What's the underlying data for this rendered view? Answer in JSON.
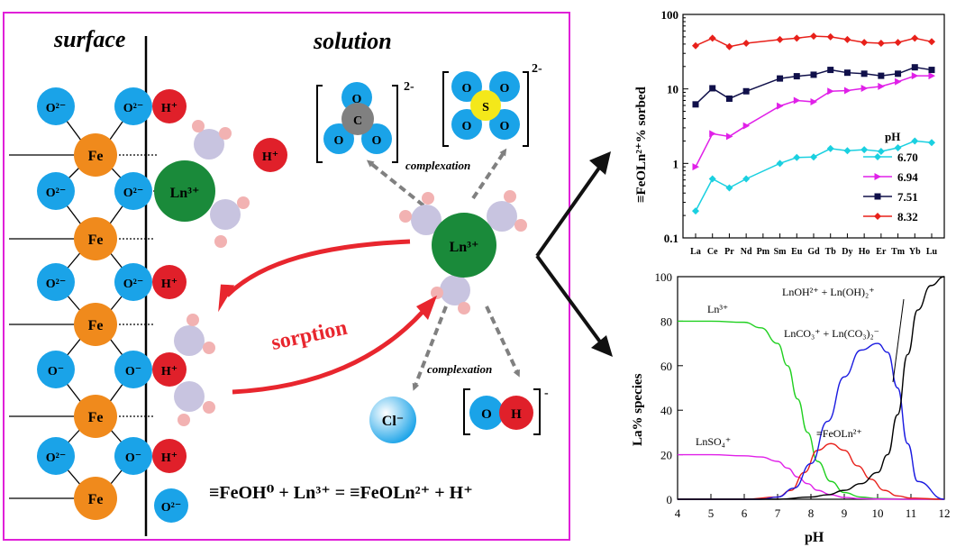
{
  "left_panel": {
    "surface_label": "surface",
    "solution_label": "solution",
    "sorption_label": "sorption",
    "complexation_label_top": "complexation",
    "complexation_label_bottom": "complexation",
    "equation": "≡FeOH⁰ + Ln³⁺ = ≡FeOLn²⁺ + H⁺",
    "atoms": {
      "oxygen_sup": "O²⁻",
      "oxygen_sup_alt": "O⁻",
      "fe": "Fe",
      "hydrogen_sup": "H⁺",
      "ln": "Ln³⁺",
      "o": "O",
      "c": "C",
      "s": "S",
      "cl": "Cl⁻",
      "h": "H",
      "charge_2minus": "2-",
      "charge_minus": "-"
    },
    "colors": {
      "frame": "#e020d8",
      "oxygen": "#1aa3e8",
      "iron": "#f08a1c",
      "hydrogen_ion": "#e0202a",
      "lanthanide": "#1a8a3a",
      "water_o": "#c8c4e0",
      "water_h": "#f2b2b2",
      "carbon": "#808080",
      "sulfur": "#f4e81a",
      "arrow_red": "#e8262e",
      "arrow_gray": "#808080"
    }
  },
  "chart_top": {
    "type": "line",
    "ylabel": "≡FeOLn²⁺% sorbed",
    "y_scale": "log",
    "ylim": [
      0.1,
      100
    ],
    "y_ticks": [
      "0.1",
      "1",
      "10",
      "100"
    ],
    "categories": [
      "La",
      "Ce",
      "Pr",
      "Nd",
      "Pm",
      "Sm",
      "Eu",
      "Gd",
      "Tb",
      "Dy",
      "Ho",
      "Er",
      "Tm",
      "Yb",
      "Lu"
    ],
    "legend_title": "pH",
    "legend_position": "lower-right",
    "series": [
      {
        "name": "6.70",
        "color": "#1ad0e0",
        "marker": "diamond",
        "values": [
          0.23,
          0.62,
          0.47,
          0.62,
          null,
          1.0,
          1.2,
          1.22,
          1.58,
          1.48,
          1.53,
          1.45,
          1.62,
          2.0,
          1.9
        ]
      },
      {
        "name": "6.94",
        "color": "#e020e8",
        "marker": "triangle-right",
        "values": [
          0.9,
          2.5,
          2.3,
          3.2,
          null,
          5.9,
          7.0,
          6.7,
          9.3,
          9.5,
          10.2,
          10.8,
          12.5,
          15.0,
          15.0
        ]
      },
      {
        "name": "7.51",
        "color": "#10104a",
        "marker": "square",
        "values": [
          6.2,
          10.2,
          7.4,
          9.3,
          null,
          13.8,
          14.8,
          15.5,
          18.0,
          16.5,
          16.0,
          15.0,
          16.0,
          19.5,
          18.0
        ]
      },
      {
        "name": "8.32",
        "color": "#e8201a",
        "marker": "diamond",
        "values": [
          38,
          48,
          37,
          41,
          null,
          46,
          48,
          51,
          50,
          46,
          42,
          41,
          42,
          48,
          43
        ]
      }
    ]
  },
  "chart_bottom": {
    "type": "line",
    "xlabel": "pH",
    "ylabel": "La% species",
    "xlim": [
      4,
      12
    ],
    "ylim": [
      0,
      100
    ],
    "x_ticks": [
      "4",
      "5",
      "6",
      "7",
      "8",
      "9",
      "10",
      "11",
      "12"
    ],
    "y_ticks": [
      "0",
      "20",
      "40",
      "60",
      "80",
      "100"
    ],
    "series": [
      {
        "name": "Ln³⁺",
        "color": "#20d020",
        "x": [
          4,
          5,
          6,
          6.5,
          7,
          7.3,
          7.6,
          7.9,
          8.2,
          8.6,
          9,
          9.5,
          10,
          11,
          12
        ],
        "y": [
          80,
          80,
          79.5,
          77,
          70,
          60,
          45,
          30,
          17,
          8,
          3,
          1,
          0.3,
          0,
          0
        ]
      },
      {
        "name": "LnSO₄⁺",
        "color": "#e020e8",
        "x": [
          4,
          5,
          6,
          6.5,
          7,
          7.3,
          7.6,
          7.9,
          8.2,
          8.6,
          9,
          9.5,
          10,
          11,
          12
        ],
        "y": [
          20,
          20,
          19.5,
          19,
          17,
          14,
          10,
          7,
          4,
          2,
          0.8,
          0.3,
          0.1,
          0,
          0
        ]
      },
      {
        "name": "≡FeOLn²⁺",
        "color": "#e8201a",
        "x": [
          4,
          6,
          7,
          7.4,
          7.8,
          8.2,
          8.6,
          9,
          9.4,
          9.8,
          10.2,
          10.6,
          11,
          12
        ],
        "y": [
          0,
          0,
          1,
          4,
          12,
          22,
          25,
          22,
          15,
          9,
          4,
          1.5,
          0.5,
          0
        ]
      },
      {
        "name": "LnCO₃⁺ + Ln(CO₃)₂⁻",
        "color": "#1a1ae0",
        "x": [
          4,
          6.5,
          7,
          7.5,
          8,
          8.5,
          9,
          9.5,
          10,
          10.3,
          10.6,
          10.9,
          11.2,
          12
        ],
        "y": [
          0,
          0,
          1,
          5,
          16,
          35,
          55,
          67,
          70,
          66,
          50,
          25,
          8,
          0
        ]
      },
      {
        "name": "LnOH²⁺ + Ln(OH)₂⁺",
        "color": "#000000",
        "x": [
          4,
          7,
          8,
          8.5,
          9,
          9.5,
          10,
          10.3,
          10.6,
          10.9,
          11.2,
          11.6,
          12
        ],
        "y": [
          0,
          0,
          1,
          2,
          4,
          7,
          12,
          20,
          38,
          65,
          85,
          96,
          100
        ]
      }
    ],
    "annotations": {
      "ln3": "Ln³⁺",
      "lnso4": "LnSO₄⁺",
      "feoln": "≡FeOLn²⁺",
      "lnco3": "LnCO₃⁺ + Ln(CO₃)₂⁻",
      "lnoh": "LnOH²⁺ + Ln(OH)₂⁺"
    }
  }
}
